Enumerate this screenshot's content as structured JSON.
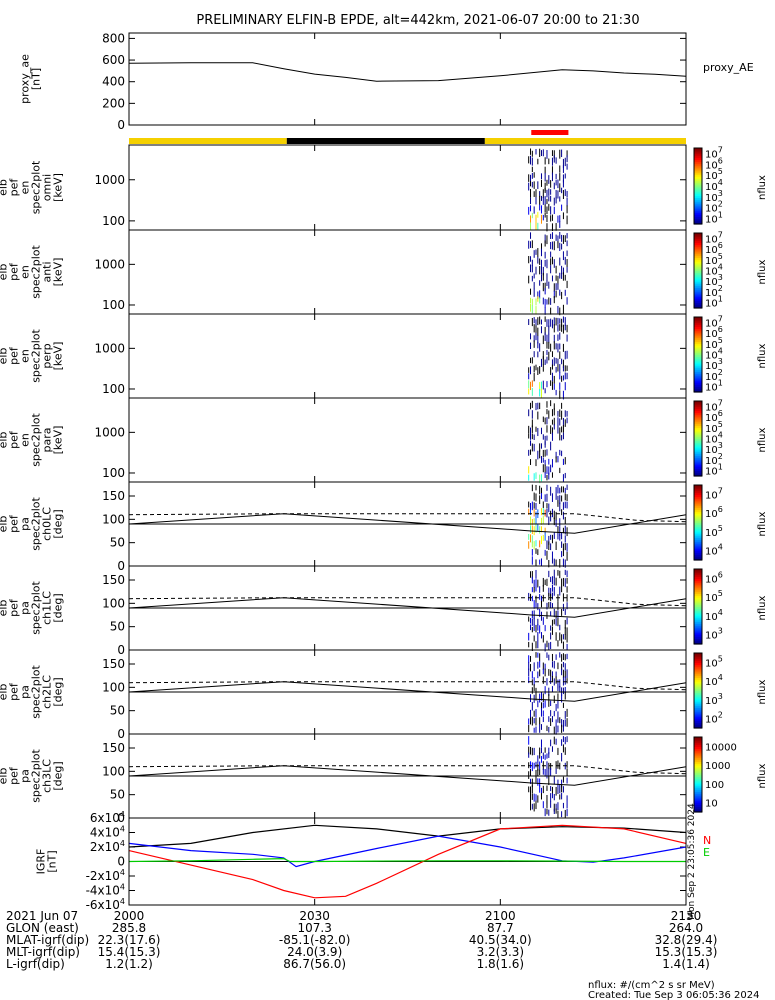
{
  "title": "PRELIMINARY ELFIN-B EPDE, alt=442km, 2021-06-07 20:00 to 21:30",
  "chart_data": [
    {
      "type": "line",
      "id": "proxy_ae",
      "ylabel_lines": [
        "proxy_ae",
        "[nT]"
      ],
      "legend": "proxy_AE",
      "ylim": [
        0,
        850
      ],
      "yticks": [
        "0",
        "200",
        "400",
        "600",
        "800"
      ],
      "ytick_values": [
        0,
        200,
        400,
        600,
        800
      ],
      "x": [
        0,
        10,
        20,
        25,
        30,
        35,
        40,
        50,
        60,
        70,
        75,
        80,
        85,
        90
      ],
      "values": [
        570,
        575,
        575,
        520,
        470,
        440,
        405,
        410,
        455,
        510,
        500,
        480,
        468,
        450
      ]
    },
    {
      "type": "heatmap",
      "id": "en_omni",
      "ylabel_lines": [
        "elb",
        "pef",
        "en",
        "spec2plot",
        "omni",
        "[keV]"
      ],
      "yticks": [
        "100",
        "1000"
      ],
      "ytick_values": [
        100,
        1000
      ],
      "ylog": true,
      "ylim": [
        60,
        7000
      ],
      "colorbar_label": "nflux",
      "colorbar_ticks": [
        "10^1",
        "10^2",
        "10^3",
        "10^4",
        "10^5",
        "10^6",
        "10^7"
      ]
    },
    {
      "type": "heatmap",
      "id": "en_anti",
      "ylabel_lines": [
        "elb",
        "pef",
        "en",
        "spec2plot",
        "anti",
        "[keV]"
      ],
      "yticks": [
        "100",
        "1000"
      ],
      "ytick_values": [
        100,
        1000
      ],
      "ylog": true,
      "ylim": [
        60,
        7000
      ],
      "colorbar_label": "nflux",
      "colorbar_ticks": [
        "10^1",
        "10^2",
        "10^3",
        "10^4",
        "10^5",
        "10^6",
        "10^7"
      ]
    },
    {
      "type": "heatmap",
      "id": "en_perp",
      "ylabel_lines": [
        "elb",
        "pef",
        "en",
        "spec2plot",
        "perp",
        "[keV]"
      ],
      "yticks": [
        "100",
        "1000"
      ],
      "ytick_values": [
        100,
        1000
      ],
      "ylog": true,
      "ylim": [
        60,
        7000
      ],
      "colorbar_label": "nflux",
      "colorbar_ticks": [
        "10^1",
        "10^2",
        "10^3",
        "10^4",
        "10^5",
        "10^6",
        "10^7"
      ]
    },
    {
      "type": "heatmap",
      "id": "en_para",
      "ylabel_lines": [
        "elb",
        "pef",
        "en",
        "spec2plot",
        "para",
        "[keV]"
      ],
      "yticks": [
        "100",
        "1000"
      ],
      "ytick_values": [
        100,
        1000
      ],
      "ylog": true,
      "ylim": [
        60,
        7000
      ],
      "colorbar_label": "nflux",
      "colorbar_ticks": [
        "10^1",
        "10^2",
        "10^3",
        "10^4",
        "10^5",
        "10^6",
        "10^7"
      ]
    },
    {
      "type": "heatmap",
      "id": "pa_ch0",
      "ylabel_lines": [
        "elb",
        "pef",
        "pa",
        "spec2plot",
        "ch0LC",
        "[deg]"
      ],
      "yticks": [
        "0",
        "50",
        "100",
        "150"
      ],
      "ytick_values": [
        0,
        50,
        100,
        150
      ],
      "ylim": [
        0,
        180
      ],
      "colorbar_label": "nflux",
      "colorbar_ticks": [
        "10^4",
        "10^5",
        "10^6",
        "10^7"
      ]
    },
    {
      "type": "heatmap",
      "id": "pa_ch1",
      "ylabel_lines": [
        "elb",
        "pef",
        "pa",
        "spec2plot",
        "ch1LC",
        "[deg]"
      ],
      "yticks": [
        "0",
        "50",
        "100",
        "150"
      ],
      "ytick_values": [
        0,
        50,
        100,
        150
      ],
      "ylim": [
        0,
        180
      ],
      "colorbar_label": "nflux",
      "colorbar_ticks": [
        "10^3",
        "10^4",
        "10^5",
        "10^6"
      ]
    },
    {
      "type": "heatmap",
      "id": "pa_ch2",
      "ylabel_lines": [
        "elb",
        "pef",
        "pa",
        "spec2plot",
        "ch2LC",
        "[deg]"
      ],
      "yticks": [
        "0",
        "50",
        "100",
        "150"
      ],
      "ytick_values": [
        0,
        50,
        100,
        150
      ],
      "ylim": [
        0,
        180
      ],
      "colorbar_label": "nflux",
      "colorbar_ticks": [
        "10^2",
        "10^3",
        "10^4",
        "10^5"
      ]
    },
    {
      "type": "heatmap",
      "id": "pa_ch3",
      "ylabel_lines": [
        "elb",
        "pef",
        "pa",
        "spec2plot",
        "ch3LC",
        "[deg]"
      ],
      "yticks": [
        "0",
        "50",
        "100",
        "150"
      ],
      "ytick_values": [
        0,
        50,
        100,
        150
      ],
      "ylim": [
        0,
        180
      ],
      "colorbar_label": "nflux",
      "colorbar_ticks": [
        "10",
        "100",
        "1000",
        "10000"
      ]
    },
    {
      "type": "line",
      "id": "igrf",
      "ylabel_lines": [
        "IGRF",
        "[nT]"
      ],
      "ylim": [
        -60000,
        60000
      ],
      "yticks": [
        "-6x10^4",
        "-4x10^4",
        "-2x10^4",
        "0",
        "2x10^4",
        "4x10^4",
        "6x10^4"
      ],
      "ytick_values": [
        -60000,
        -40000,
        -20000,
        0,
        20000,
        40000,
        60000
      ],
      "legend": [
        "N",
        "E"
      ],
      "series": [
        {
          "name": "",
          "color": "#000000",
          "x": [
            0,
            10,
            20,
            30,
            40,
            50,
            60,
            70,
            80,
            90
          ],
          "values": [
            20000,
            25000,
            40000,
            50000,
            45000,
            35000,
            45000,
            48000,
            46000,
            40000
          ]
        },
        {
          "name": "",
          "color": "#0000ff",
          "x": [
            0,
            10,
            20,
            25,
            27,
            30,
            40,
            50,
            60,
            70,
            75,
            80,
            90
          ],
          "values": [
            25000,
            15000,
            10000,
            5000,
            -7000,
            0,
            18000,
            35000,
            20000,
            1000,
            -1000,
            5000,
            20000
          ]
        },
        {
          "name": "N",
          "color": "#ff0000",
          "x": [
            0,
            10,
            20,
            25,
            30,
            35,
            40,
            50,
            60,
            70,
            80,
            90
          ],
          "values": [
            15000,
            -5000,
            -25000,
            -40000,
            -50000,
            -48000,
            -30000,
            10000,
            45000,
            50000,
            45000,
            25000
          ]
        },
        {
          "name": "E",
          "color": "#00cc00",
          "x": [
            0,
            10,
            20,
            25,
            26,
            30,
            40,
            50,
            60,
            70,
            80,
            90
          ],
          "values": [
            0,
            1000,
            3000,
            4000,
            0,
            0,
            500,
            1000,
            1000,
            500,
            0,
            0
          ]
        }
      ]
    }
  ],
  "x_ticks": [
    "2000",
    "2030",
    "2100",
    "2130"
  ],
  "x_tick_minutes": [
    0,
    30,
    60,
    90
  ],
  "footer": {
    "rows": [
      {
        "label": "2021 Jun 07",
        "values": [
          "2000",
          "2030",
          "2100",
          "2130"
        ]
      },
      {
        "label": "GLON (east)",
        "values": [
          "285.8",
          "107.3",
          "87.7",
          "264.0"
        ]
      },
      {
        "label": "MLAT-igrf(dip)",
        "values": [
          "22.3(17.6)",
          "-85.1(-82.0)",
          "40.5(34.0)",
          "32.8(29.4)"
        ]
      },
      {
        "label": "MLT-igrf(dip)",
        "values": [
          "15.4(15.3)",
          "24.0(3.9)",
          "3.2(3.3)",
          "15.3(15.3)"
        ]
      },
      {
        "label": "L-igrf(dip)",
        "values": [
          "1.2(1.2)",
          "86.7(56.0)",
          "1.8(1.6)",
          "1.4(1.4)"
        ]
      }
    ],
    "nflux_unit": "nflux: #/(cm^2 s sr MeV)",
    "created": "Created: Tue Sep  3 06:05:36 2024",
    "side_stamp": "Mon Sep  2 23:05:36 2024"
  },
  "status_bar": {
    "segments": [
      {
        "from": 0,
        "to": 25.5,
        "color": "#f5d000"
      },
      {
        "from": 25.5,
        "to": 57.5,
        "color": "#000000"
      },
      {
        "from": 57.5,
        "to": 90,
        "color": "#f5d000"
      }
    ],
    "marker": {
      "from": 65,
      "to": 71,
      "color": "#ff0000"
    }
  },
  "burst_window": {
    "from": 64.5,
    "to": 71
  }
}
